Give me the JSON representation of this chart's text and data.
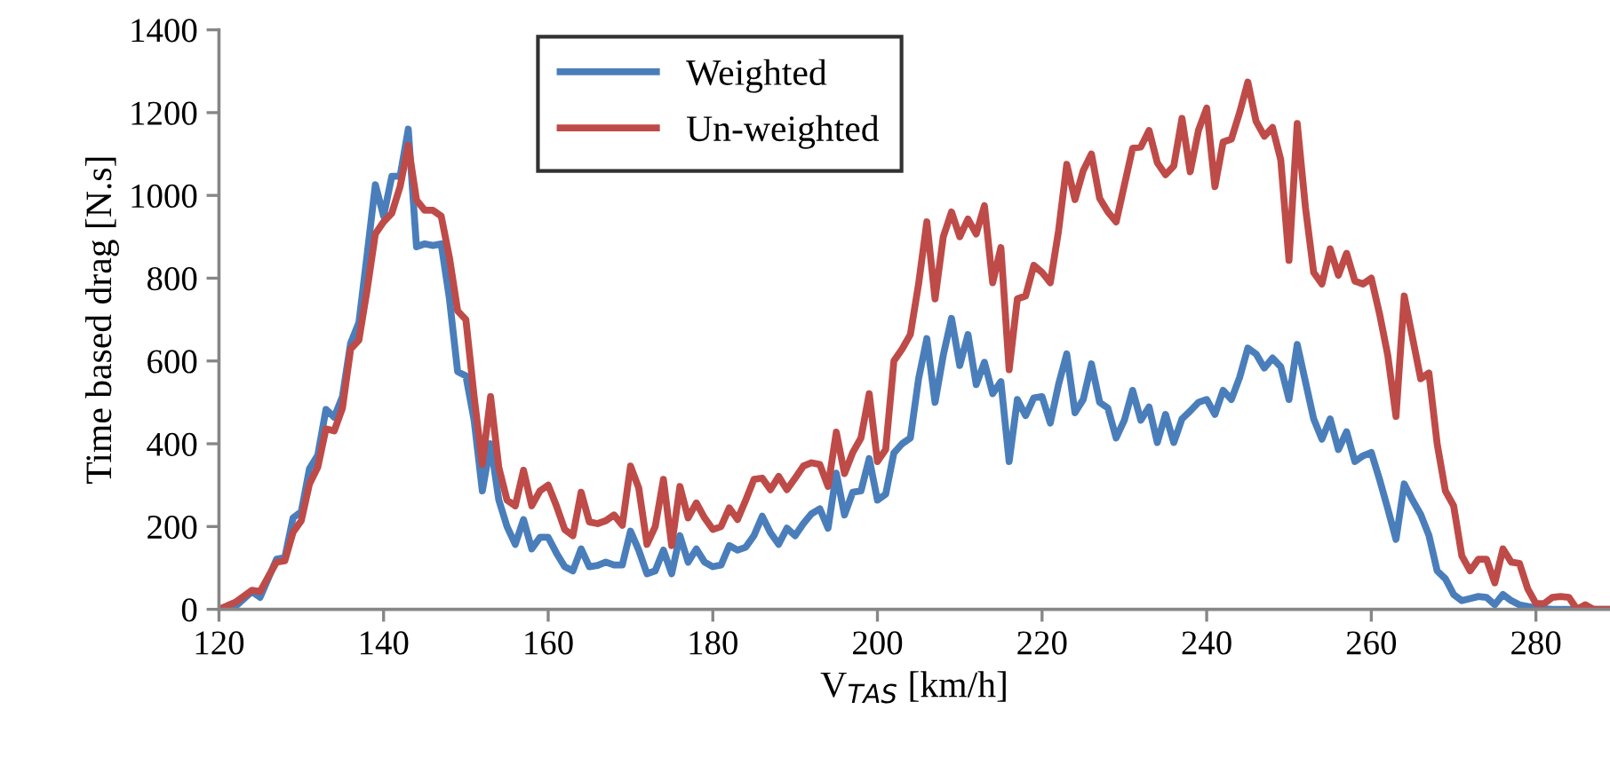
{
  "chart_data": {
    "type": "line",
    "xlabel": "V$_{TAS}$ [km/h]",
    "ylabel": "Time based drag [N.s]",
    "xlim": [
      120,
      289
    ],
    "xticks": [
      120,
      140,
      160,
      180,
      200,
      220,
      240,
      260,
      280
    ],
    "ylim": [
      0,
      1400
    ],
    "yticks": [
      0,
      200,
      400,
      600,
      800,
      1000,
      1200,
      1400
    ],
    "grid": false,
    "legend": "top",
    "marker": "none",
    "line_style": "solid",
    "series": [
      {
        "name": "Weighted",
        "color": "#4a7ebb",
        "x": [
          120,
          122,
          124,
          125,
          127,
          128,
          129,
          130,
          131,
          132,
          133,
          134,
          135,
          136,
          137,
          138,
          139,
          140,
          141,
          142,
          143,
          144,
          145,
          146,
          147,
          148,
          149,
          150,
          151,
          152,
          153,
          154,
          155,
          156,
          157,
          158,
          159,
          160,
          161,
          162,
          163,
          164,
          165,
          166,
          167,
          168,
          169,
          170,
          171,
          172,
          173,
          174,
          175,
          176,
          177,
          178,
          179,
          180,
          181,
          182,
          183,
          184,
          185,
          186,
          187,
          188,
          189,
          190,
          191,
          192,
          193,
          194,
          195,
          196,
          197,
          198,
          199,
          200,
          201,
          202,
          203,
          204,
          205,
          206,
          207,
          208,
          209,
          210,
          211,
          212,
          213,
          214,
          215,
          216,
          217,
          218,
          219,
          220,
          221,
          222,
          223,
          224,
          225,
          226,
          227,
          228,
          229,
          230,
          231,
          232,
          233,
          234,
          235,
          236,
          237,
          238,
          239,
          240,
          241,
          242,
          243,
          244,
          245,
          246,
          247,
          248,
          249,
          250,
          251,
          252,
          253,
          254,
          255,
          256,
          257,
          258,
          259,
          260,
          261,
          262,
          263,
          264,
          265,
          266,
          267,
          268,
          269,
          270,
          271,
          272,
          273,
          274,
          275,
          276,
          277,
          278,
          279,
          280,
          282,
          284,
          286,
          289
        ],
        "values": [
          0,
          7,
          43,
          29,
          121,
          125,
          221,
          236,
          340,
          372,
          483,
          464,
          514,
          643,
          693,
          857,
          1026,
          950,
          1046,
          1046,
          1160,
          876,
          883,
          879,
          883,
          750,
          574,
          564,
          457,
          286,
          400,
          264,
          200,
          157,
          217,
          146,
          174,
          174,
          136,
          103,
          93,
          146,
          103,
          106,
          114,
          107,
          107,
          189,
          143,
          86,
          93,
          143,
          86,
          178,
          114,
          146,
          114,
          103,
          107,
          154,
          143,
          150,
          178,
          225,
          185,
          157,
          196,
          178,
          207,
          231,
          243,
          196,
          329,
          228,
          283,
          286,
          364,
          264,
          278,
          378,
          400,
          414,
          557,
          654,
          500,
          614,
          703,
          589,
          664,
          543,
          597,
          521,
          550,
          357,
          507,
          468,
          511,
          514,
          450,
          543,
          617,
          475,
          507,
          593,
          500,
          486,
          414,
          457,
          529,
          457,
          489,
          403,
          471,
          403,
          460,
          479,
          500,
          507,
          471,
          529,
          507,
          560,
          631,
          617,
          583,
          607,
          586,
          507,
          640,
          550,
          460,
          411,
          460,
          386,
          429,
          357,
          371,
          379,
          314,
          243,
          169,
          303,
          264,
          229,
          179,
          93,
          74,
          36,
          21,
          26,
          31,
          29,
          11,
          36,
          21,
          11,
          7,
          3,
          0,
          0,
          0,
          0
        ]
      },
      {
        "name": "Un-weighted",
        "color": "#be4b48",
        "x": [
          120,
          122,
          124,
          125,
          126,
          127,
          128,
          129,
          130,
          131,
          132,
          133,
          134,
          135,
          136,
          137,
          138,
          139,
          140,
          141,
          142,
          143,
          144,
          145,
          146,
          147,
          148,
          149,
          150,
          151,
          152,
          153,
          154,
          155,
          156,
          157,
          158,
          159,
          160,
          161,
          162,
          163,
          164,
          165,
          166,
          167,
          168,
          169,
          170,
          171,
          172,
          173,
          174,
          175,
          176,
          177,
          178,
          179,
          180,
          181,
          182,
          183,
          184,
          185,
          186,
          187,
          188,
          189,
          190,
          191,
          192,
          193,
          194,
          195,
          196,
          197,
          198,
          199,
          200,
          201,
          202,
          203,
          204,
          205,
          206,
          207,
          208,
          209,
          210,
          211,
          212,
          213,
          214,
          215,
          216,
          217,
          218,
          219,
          220,
          221,
          222,
          223,
          224,
          225,
          226,
          227,
          228,
          229,
          231,
          232,
          233,
          234,
          235,
          236,
          237,
          238,
          239,
          240,
          241,
          242,
          243,
          244,
          245,
          246,
          247,
          248,
          249,
          250,
          251,
          252,
          253,
          254,
          255,
          256,
          257,
          258,
          259,
          260,
          261,
          262,
          263,
          264,
          265,
          266,
          267,
          268,
          269,
          270,
          271,
          272,
          273,
          274,
          275,
          276,
          277,
          278,
          279,
          280,
          281,
          282,
          283,
          284,
          285,
          286,
          287,
          289
        ],
        "values": [
          0,
          17,
          46,
          43,
          79,
          114,
          117,
          186,
          214,
          303,
          343,
          436,
          431,
          486,
          629,
          650,
          772,
          907,
          936,
          957,
          1021,
          1121,
          989,
          964,
          964,
          950,
          850,
          721,
          700,
          514,
          350,
          514,
          343,
          264,
          250,
          336,
          250,
          286,
          300,
          250,
          193,
          178,
          283,
          211,
          207,
          214,
          228,
          203,
          346,
          293,
          157,
          200,
          314,
          154,
          297,
          221,
          257,
          221,
          193,
          200,
          245,
          217,
          264,
          314,
          317,
          289,
          321,
          289,
          317,
          346,
          354,
          350,
          297,
          428,
          328,
          379,
          414,
          521,
          357,
          386,
          600,
          629,
          664,
          786,
          936,
          750,
          900,
          960,
          900,
          943,
          907,
          975,
          789,
          874,
          579,
          750,
          757,
          831,
          814,
          789,
          914,
          1075,
          990,
          1060,
          1100,
          993,
          960,
          936,
          1114,
          1117,
          1157,
          1079,
          1050,
          1071,
          1186,
          1057,
          1157,
          1211,
          1021,
          1129,
          1136,
          1200,
          1274,
          1179,
          1143,
          1164,
          1086,
          843,
          1174,
          971,
          814,
          786,
          871,
          807,
          860,
          793,
          786,
          800,
          714,
          614,
          466,
          757,
          657,
          557,
          571,
          400,
          286,
          250,
          129,
          93,
          121,
          121,
          64,
          146,
          114,
          111,
          50,
          14,
          14,
          29,
          31,
          29,
          0,
          11,
          0,
          0
        ]
      }
    ]
  }
}
